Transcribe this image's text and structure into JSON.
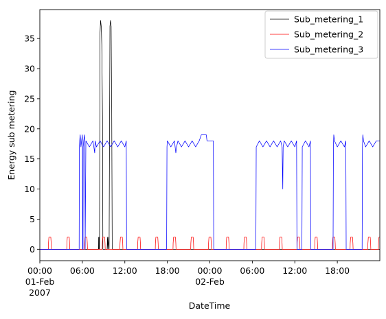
{
  "chart_data": {
    "type": "line",
    "xlabel": "DateTime",
    "ylabel": "Energy sub metering",
    "xlim_hours": [
      0,
      48
    ],
    "ylim": [
      -1.9,
      39.8
    ],
    "yticks": [
      0,
      5,
      10,
      15,
      20,
      25,
      30,
      35
    ],
    "xticks": [
      {
        "hour": 0,
        "lines": [
          "00:00",
          "01-Feb",
          "2007"
        ]
      },
      {
        "hour": 6,
        "lines": [
          "06:00"
        ]
      },
      {
        "hour": 12,
        "lines": [
          "12:00"
        ]
      },
      {
        "hour": 18,
        "lines": [
          "18:00"
        ]
      },
      {
        "hour": 24,
        "lines": [
          "00:00",
          "02-Feb"
        ]
      },
      {
        "hour": 30,
        "lines": [
          "06:00"
        ]
      },
      {
        "hour": 36,
        "lines": [
          "12:00"
        ]
      },
      {
        "hour": 42,
        "lines": [
          "18:00"
        ]
      }
    ],
    "legend": "top-right",
    "series": [
      {
        "name": "Sub_metering_1",
        "color": "#000000",
        "points": [
          [
            0,
            0
          ],
          [
            8.28,
            0
          ],
          [
            8.3,
            2
          ],
          [
            8.34,
            0
          ],
          [
            8.37,
            2
          ],
          [
            8.42,
            0
          ],
          [
            8.5,
            36
          ],
          [
            8.58,
            38
          ],
          [
            8.67,
            37
          ],
          [
            8.75,
            34
          ],
          [
            8.85,
            22
          ],
          [
            8.9,
            0
          ],
          [
            9.5,
            0
          ],
          [
            9.55,
            2
          ],
          [
            9.62,
            0
          ],
          [
            9.72,
            2
          ],
          [
            9.78,
            0
          ],
          [
            9.9,
            37
          ],
          [
            9.97,
            38
          ],
          [
            10.07,
            37
          ],
          [
            10.15,
            23
          ],
          [
            10.22,
            0
          ],
          [
            48,
            0
          ]
        ]
      },
      {
        "name": "Sub_metering_2",
        "color": "#ff0000",
        "points": [
          [
            0,
            0
          ],
          [
            1.2,
            0
          ],
          [
            1.22,
            1
          ],
          [
            1.28,
            2
          ],
          [
            1.55,
            2
          ],
          [
            1.6,
            1
          ],
          [
            1.63,
            0
          ],
          [
            3.8,
            0
          ],
          [
            3.82,
            1
          ],
          [
            3.88,
            2
          ],
          [
            4.15,
            2
          ],
          [
            4.2,
            1
          ],
          [
            4.23,
            0
          ],
          [
            6.3,
            0
          ],
          [
            6.32,
            1
          ],
          [
            6.38,
            2
          ],
          [
            6.65,
            2
          ],
          [
            6.7,
            1
          ],
          [
            6.73,
            0
          ],
          [
            8.8,
            0
          ],
          [
            8.82,
            1
          ],
          [
            8.88,
            2
          ],
          [
            9.15,
            2
          ],
          [
            9.2,
            1
          ],
          [
            9.23,
            0
          ],
          [
            11.3,
            0
          ],
          [
            11.32,
            1
          ],
          [
            11.38,
            2
          ],
          [
            11.65,
            2
          ],
          [
            11.7,
            1
          ],
          [
            11.73,
            0
          ],
          [
            13.8,
            0
          ],
          [
            13.82,
            1
          ],
          [
            13.88,
            2
          ],
          [
            14.15,
            2
          ],
          [
            14.2,
            1
          ],
          [
            14.23,
            0
          ],
          [
            16.3,
            0
          ],
          [
            16.32,
            1
          ],
          [
            16.38,
            2
          ],
          [
            16.65,
            2
          ],
          [
            16.7,
            1
          ],
          [
            16.73,
            0
          ],
          [
            18.8,
            0
          ],
          [
            18.82,
            1
          ],
          [
            18.88,
            2
          ],
          [
            19.15,
            2
          ],
          [
            19.2,
            1
          ],
          [
            19.23,
            0
          ],
          [
            21.3,
            0
          ],
          [
            21.32,
            1
          ],
          [
            21.38,
            2
          ],
          [
            21.65,
            2
          ],
          [
            21.7,
            1
          ],
          [
            21.73,
            0
          ],
          [
            23.8,
            0
          ],
          [
            23.82,
            1
          ],
          [
            23.88,
            2
          ],
          [
            24.15,
            2
          ],
          [
            24.2,
            1
          ],
          [
            24.23,
            0
          ],
          [
            26.3,
            0
          ],
          [
            26.32,
            1
          ],
          [
            26.38,
            2
          ],
          [
            26.65,
            2
          ],
          [
            26.7,
            1
          ],
          [
            26.73,
            0
          ],
          [
            28.8,
            0
          ],
          [
            28.82,
            1
          ],
          [
            28.88,
            2
          ],
          [
            29.15,
            2
          ],
          [
            29.2,
            1
          ],
          [
            29.23,
            0
          ],
          [
            31.3,
            0
          ],
          [
            31.32,
            1
          ],
          [
            31.38,
            2
          ],
          [
            31.65,
            2
          ],
          [
            31.7,
            1
          ],
          [
            31.73,
            0
          ],
          [
            33.8,
            0
          ],
          [
            33.82,
            1
          ],
          [
            33.88,
            2
          ],
          [
            34.15,
            2
          ],
          [
            34.2,
            1
          ],
          [
            34.23,
            0
          ],
          [
            36.3,
            0
          ],
          [
            36.32,
            1
          ],
          [
            36.38,
            2
          ],
          [
            36.65,
            2
          ],
          [
            36.7,
            1
          ],
          [
            36.73,
            0
          ],
          [
            38.8,
            0
          ],
          [
            38.82,
            1
          ],
          [
            38.88,
            2
          ],
          [
            39.15,
            2
          ],
          [
            39.2,
            1
          ],
          [
            39.23,
            0
          ],
          [
            41.3,
            0
          ],
          [
            41.32,
            1
          ],
          [
            41.38,
            2
          ],
          [
            41.65,
            2
          ],
          [
            41.7,
            1
          ],
          [
            41.73,
            0
          ],
          [
            43.8,
            0
          ],
          [
            43.82,
            1
          ],
          [
            43.88,
            2
          ],
          [
            44.15,
            2
          ],
          [
            44.2,
            1
          ],
          [
            44.23,
            0
          ],
          [
            46.3,
            0
          ],
          [
            46.32,
            1
          ],
          [
            46.38,
            2
          ],
          [
            46.65,
            2
          ],
          [
            46.7,
            1
          ],
          [
            46.73,
            0
          ],
          [
            47.8,
            0
          ],
          [
            47.82,
            1
          ],
          [
            47.88,
            2
          ],
          [
            48,
            2
          ]
        ]
      },
      {
        "name": "Sub_metering_3",
        "color": "#0000ff",
        "points": [
          [
            0,
            0
          ],
          [
            5.55,
            0
          ],
          [
            5.58,
            17
          ],
          [
            5.62,
            18
          ],
          [
            5.7,
            19
          ],
          [
            5.8,
            17
          ],
          [
            5.9,
            18
          ],
          [
            6.0,
            19
          ],
          [
            6.05,
            0
          ],
          [
            6.1,
            0
          ],
          [
            6.12,
            17
          ],
          [
            6.2,
            18
          ],
          [
            6.3,
            19
          ],
          [
            6.35,
            18
          ],
          [
            6.4,
            0
          ],
          [
            6.5,
            18
          ],
          [
            7.0,
            17
          ],
          [
            7.5,
            18
          ],
          [
            7.75,
            16
          ],
          [
            7.8,
            18
          ],
          [
            8.0,
            17
          ],
          [
            8.5,
            18
          ],
          [
            9.0,
            17
          ],
          [
            9.5,
            18
          ],
          [
            10.0,
            17
          ],
          [
            10.5,
            18
          ],
          [
            11.0,
            17
          ],
          [
            11.5,
            18
          ],
          [
            12.0,
            17
          ],
          [
            12.2,
            18
          ],
          [
            12.25,
            0
          ],
          [
            17.9,
            0
          ],
          [
            17.95,
            17
          ],
          [
            18.0,
            18
          ],
          [
            18.5,
            17
          ],
          [
            19.0,
            18
          ],
          [
            19.2,
            16
          ],
          [
            19.3,
            17
          ],
          [
            19.5,
            18
          ],
          [
            20.0,
            17
          ],
          [
            20.5,
            18
          ],
          [
            21.0,
            17
          ],
          [
            21.5,
            18
          ],
          [
            22.0,
            17
          ],
          [
            22.5,
            18
          ],
          [
            22.8,
            19
          ],
          [
            23.5,
            19
          ],
          [
            23.6,
            18
          ],
          [
            24.0,
            18
          ],
          [
            24.5,
            18
          ],
          [
            24.55,
            0
          ],
          [
            30.5,
            0
          ],
          [
            30.55,
            17
          ],
          [
            31.0,
            18
          ],
          [
            31.5,
            17
          ],
          [
            32.0,
            18
          ],
          [
            32.5,
            17
          ],
          [
            33.0,
            18
          ],
          [
            33.5,
            17
          ],
          [
            34.0,
            18
          ],
          [
            34.2,
            17
          ],
          [
            34.3,
            10
          ],
          [
            34.35,
            17
          ],
          [
            34.5,
            18
          ],
          [
            35.0,
            17
          ],
          [
            35.5,
            18
          ],
          [
            36.0,
            17
          ],
          [
            36.25,
            18
          ],
          [
            36.3,
            0
          ],
          [
            37.0,
            0
          ],
          [
            37.05,
            17
          ],
          [
            37.5,
            18
          ],
          [
            38.0,
            17
          ],
          [
            38.2,
            18
          ],
          [
            38.25,
            0
          ],
          [
            41.4,
            0
          ],
          [
            41.45,
            17
          ],
          [
            41.5,
            19
          ],
          [
            41.6,
            18
          ],
          [
            42.0,
            17
          ],
          [
            42.5,
            18
          ],
          [
            43.0,
            17
          ],
          [
            43.2,
            18
          ],
          [
            43.25,
            0
          ],
          [
            45.5,
            0
          ],
          [
            45.55,
            17
          ],
          [
            45.6,
            19
          ],
          [
            45.7,
            18
          ],
          [
            46.0,
            17
          ],
          [
            46.5,
            18
          ],
          [
            47.0,
            17
          ],
          [
            47.5,
            18
          ],
          [
            48,
            18
          ]
        ]
      }
    ]
  }
}
